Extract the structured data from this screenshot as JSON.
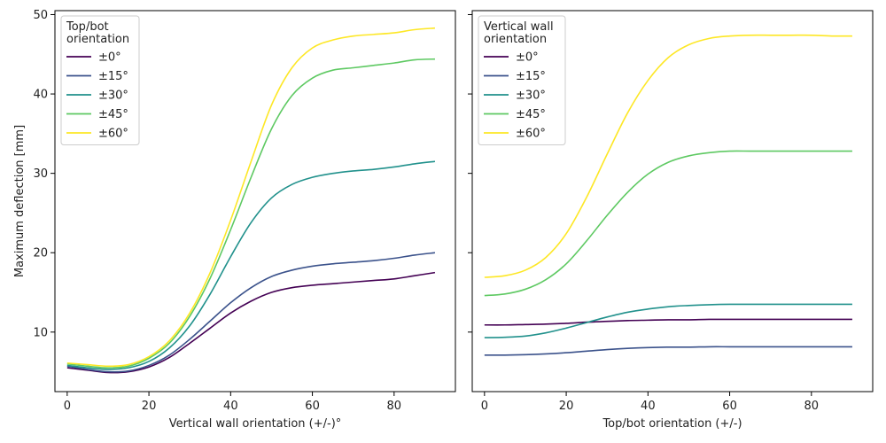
{
  "chart_data": [
    {
      "type": "line",
      "xlabel": "Vertical wall orientation (+/-)°",
      "ylabel": "Maximum deflection [mm]",
      "xlim": [
        -3,
        95
      ],
      "ylim": [
        2.5,
        50.5
      ],
      "xticks": [
        "0",
        "20",
        "40",
        "60",
        "80"
      ],
      "xtick_values": [
        0,
        20,
        40,
        60,
        80
      ],
      "yticks": [
        "10",
        "20",
        "30",
        "40",
        "50"
      ],
      "ytick_values": [
        10,
        20,
        30,
        40,
        50
      ],
      "grid": false,
      "legend": {
        "title_lines": [
          "Top/bot",
          "orientation"
        ],
        "placement": "top-left"
      },
      "x": [
        0,
        5,
        10,
        15,
        20,
        25,
        30,
        35,
        40,
        45,
        50,
        55,
        60,
        65,
        70,
        75,
        80,
        85,
        90
      ],
      "series": [
        {
          "name": "±0°",
          "color": "#440154",
          "values": [
            5.5,
            5.2,
            4.9,
            5.0,
            5.6,
            6.8,
            8.6,
            10.5,
            12.4,
            13.9,
            15.0,
            15.6,
            15.9,
            16.1,
            16.3,
            16.5,
            16.7,
            17.1,
            17.5
          ]
        },
        {
          "name": "±15°",
          "color": "#3b528b",
          "values": [
            5.7,
            5.3,
            5.0,
            5.1,
            5.8,
            7.1,
            9.1,
            11.4,
            13.7,
            15.6,
            17.0,
            17.8,
            18.3,
            18.6,
            18.8,
            19.0,
            19.3,
            19.7,
            20.0
          ]
        },
        {
          "name": "±30°",
          "color": "#21918c",
          "values": [
            5.8,
            5.5,
            5.3,
            5.5,
            6.3,
            8.0,
            10.8,
            14.8,
            19.5,
            23.8,
            26.9,
            28.6,
            29.5,
            30.0,
            30.3,
            30.5,
            30.8,
            31.2,
            31.5
          ]
        },
        {
          "name": "±45°",
          "color": "#5ec962",
          "values": [
            6.0,
            5.7,
            5.5,
            5.7,
            6.7,
            8.6,
            12.0,
            16.8,
            22.9,
            29.5,
            35.6,
            39.8,
            42.0,
            43.0,
            43.3,
            43.6,
            43.9,
            44.3,
            44.4
          ]
        },
        {
          "name": "±60°",
          "color": "#fde725",
          "values": [
            6.1,
            5.9,
            5.7,
            5.9,
            6.9,
            8.9,
            12.4,
            17.5,
            24.1,
            31.5,
            38.6,
            43.3,
            45.8,
            46.8,
            47.3,
            47.5,
            47.7,
            48.1,
            48.3
          ]
        }
      ]
    },
    {
      "type": "line",
      "xlabel": "Top/bot orientation (+/-)",
      "ylabel": "",
      "xlim": [
        -3,
        95
      ],
      "ylim": [
        2.5,
        50.5
      ],
      "xticks": [
        "0",
        "20",
        "40",
        "60",
        "80"
      ],
      "xtick_values": [
        0,
        20,
        40,
        60,
        80
      ],
      "yticks": [],
      "ytick_values": [
        10,
        20,
        30,
        40,
        50
      ],
      "grid": false,
      "legend": {
        "title_lines": [
          "Vertical wall",
          "orientation"
        ],
        "placement": "top-left"
      },
      "x": [
        0,
        5,
        10,
        15,
        20,
        25,
        30,
        35,
        40,
        45,
        50,
        55,
        60,
        65,
        70,
        75,
        80,
        85,
        90
      ],
      "series": [
        {
          "name": "±0°",
          "color": "#440154",
          "values": [
            10.9,
            10.9,
            10.95,
            11.0,
            11.1,
            11.25,
            11.35,
            11.45,
            11.5,
            11.55,
            11.55,
            11.6,
            11.6,
            11.6,
            11.6,
            11.6,
            11.6,
            11.6,
            11.6
          ]
        },
        {
          "name": "±15°",
          "color": "#3b528b",
          "values": [
            7.1,
            7.1,
            7.15,
            7.25,
            7.4,
            7.6,
            7.8,
            7.95,
            8.05,
            8.1,
            8.1,
            8.15,
            8.15,
            8.15,
            8.15,
            8.15,
            8.15,
            8.15,
            8.15
          ]
        },
        {
          "name": "±30°",
          "color": "#21918c",
          "values": [
            9.3,
            9.35,
            9.5,
            9.9,
            10.5,
            11.2,
            11.9,
            12.5,
            12.9,
            13.2,
            13.35,
            13.45,
            13.5,
            13.5,
            13.5,
            13.5,
            13.5,
            13.5,
            13.5
          ]
        },
        {
          "name": "±45°",
          "color": "#5ec962",
          "values": [
            14.6,
            14.8,
            15.4,
            16.6,
            18.6,
            21.5,
            24.7,
            27.6,
            29.9,
            31.4,
            32.2,
            32.6,
            32.8,
            32.8,
            32.8,
            32.8,
            32.8,
            32.8,
            32.8
          ]
        },
        {
          "name": "±60°",
          "color": "#fde725",
          "values": [
            16.9,
            17.1,
            17.8,
            19.4,
            22.4,
            27.0,
            32.4,
            37.6,
            41.7,
            44.6,
            46.2,
            47.0,
            47.3,
            47.4,
            47.4,
            47.4,
            47.4,
            47.3,
            47.3
          ]
        }
      ]
    }
  ]
}
